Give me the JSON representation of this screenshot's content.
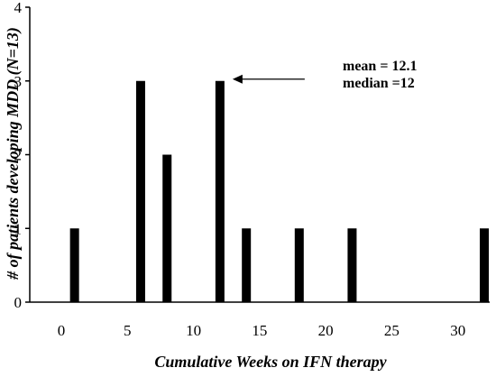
{
  "chart_data": {
    "type": "bar",
    "xlabel": "Cumulative Weeks on IFN therapy",
    "ylabel": "# of patients developing MDD (N=13)",
    "xlim": [
      0,
      32
    ],
    "ylim": [
      0,
      4
    ],
    "x_ticks": [
      0,
      5,
      10,
      15,
      20,
      25,
      30
    ],
    "y_ticks": [
      0,
      1,
      2,
      3,
      4
    ],
    "x": [
      1,
      6,
      8,
      12,
      14,
      18,
      22,
      32
    ],
    "values": [
      1,
      3,
      2,
      3,
      1,
      1,
      1,
      1
    ],
    "annotation": {
      "lines": [
        "mean = 12.1",
        "median =12"
      ],
      "arrow_points_to_x": 12,
      "arrow_at_y": 3
    },
    "grid": false,
    "bar_color": "#000000"
  }
}
